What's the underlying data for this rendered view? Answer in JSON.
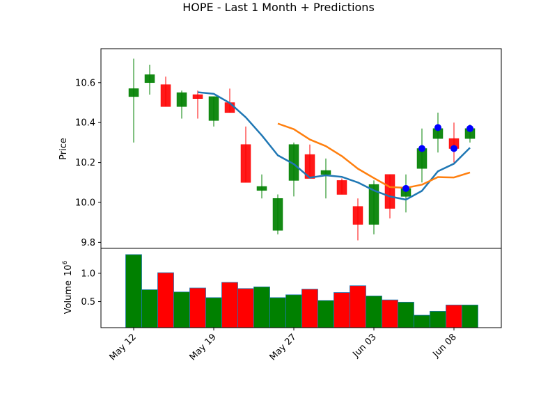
{
  "chart_data": {
    "type": "candlestick",
    "title": "HOPE - Last 1 Month + Predictions",
    "price_panel": {
      "ylabel": "Price",
      "ylim": [
        9.77,
        10.77
      ],
      "yticks": [
        "9.8",
        "10.0",
        "10.2",
        "10.4",
        "10.6"
      ],
      "candles": [
        {
          "o": 10.53,
          "h": 10.72,
          "l": 10.3,
          "c": 10.57
        },
        {
          "o": 10.6,
          "h": 10.69,
          "l": 10.54,
          "c": 10.64
        },
        {
          "o": 10.59,
          "h": 10.63,
          "l": 10.48,
          "c": 10.48
        },
        {
          "o": 10.48,
          "h": 10.56,
          "l": 10.42,
          "c": 10.55
        },
        {
          "o": 10.54,
          "h": 10.56,
          "l": 10.42,
          "c": 10.52
        },
        {
          "o": 10.41,
          "h": 10.53,
          "l": 10.38,
          "c": 10.53
        },
        {
          "o": 10.5,
          "h": 10.57,
          "l": 10.45,
          "c": 10.45
        },
        {
          "o": 10.29,
          "h": 10.38,
          "l": 10.1,
          "c": 10.1
        },
        {
          "o": 10.06,
          "h": 10.14,
          "l": 10.02,
          "c": 10.08
        },
        {
          "o": 9.86,
          "h": 10.04,
          "l": 9.84,
          "c": 10.02
        },
        {
          "o": 10.11,
          "h": 10.3,
          "l": 10.03,
          "c": 10.29
        },
        {
          "o": 10.24,
          "h": 10.29,
          "l": 10.12,
          "c": 10.12
        },
        {
          "o": 10.14,
          "h": 10.22,
          "l": 10.02,
          "c": 10.16
        },
        {
          "o": 10.11,
          "h": 10.12,
          "l": 10.04,
          "c": 10.04
        },
        {
          "o": 9.98,
          "h": 10.02,
          "l": 9.81,
          "c": 9.89
        },
        {
          "o": 9.89,
          "h": 10.11,
          "l": 9.84,
          "c": 10.09
        },
        {
          "o": 10.14,
          "h": 10.14,
          "l": 9.92,
          "c": 9.97
        },
        {
          "o": 10.03,
          "h": 10.14,
          "l": 9.95,
          "c": 10.07
        },
        {
          "o": 10.17,
          "h": 10.37,
          "l": 10.1,
          "c": 10.27
        },
        {
          "o": 10.32,
          "h": 10.45,
          "l": 10.25,
          "c": 10.37
        },
        {
          "o": 10.32,
          "h": 10.4,
          "l": 10.2,
          "c": 10.27
        },
        {
          "o": 10.32,
          "h": 10.39,
          "l": 10.3,
          "c": 10.37
        }
      ],
      "ma_short": [
        null,
        null,
        null,
        null,
        10.552,
        10.544,
        10.498,
        10.426,
        10.336,
        10.236,
        10.192,
        10.124,
        10.136,
        10.128,
        10.1,
        10.06,
        10.03,
        10.014,
        10.058,
        10.156,
        10.194,
        10.274
      ],
      "ma_long": [
        null,
        null,
        null,
        null,
        null,
        null,
        null,
        null,
        null,
        10.395,
        10.367,
        10.315,
        10.282,
        10.232,
        10.169,
        10.122,
        10.077,
        10.073,
        10.089,
        10.127,
        10.125,
        10.15
      ],
      "predictions": [
        null,
        null,
        null,
        null,
        null,
        null,
        null,
        null,
        null,
        null,
        null,
        null,
        null,
        null,
        null,
        null,
        null,
        10.07,
        10.27,
        10.375,
        10.27,
        10.37
      ],
      "colors": {
        "up": "#008000",
        "down": "#ff0000",
        "ma_short": "#1f77b4",
        "ma_long": "#ff7f0e",
        "prediction": "#0000ff"
      }
    },
    "volume_panel": {
      "ylabel": "Volume",
      "exponent_label": "6",
      "ylim": [
        0.04,
        1.44
      ],
      "yticks": [
        "0.5",
        "1.0"
      ],
      "values": [
        1.33,
        0.71,
        1.01,
        0.67,
        0.74,
        0.57,
        0.84,
        0.73,
        0.76,
        0.57,
        0.62,
        0.72,
        0.52,
        0.66,
        0.78,
        0.6,
        0.53,
        0.49,
        0.26,
        0.33,
        0.44,
        0.44
      ]
    },
    "x_ticks": [
      {
        "label": "May 12",
        "index": 0
      },
      {
        "label": "May 19",
        "index": 5
      },
      {
        "label": "May 27",
        "index": 10
      },
      {
        "label": "Jun 03",
        "index": 15
      },
      {
        "label": "Jun 08",
        "index": 20
      }
    ]
  }
}
